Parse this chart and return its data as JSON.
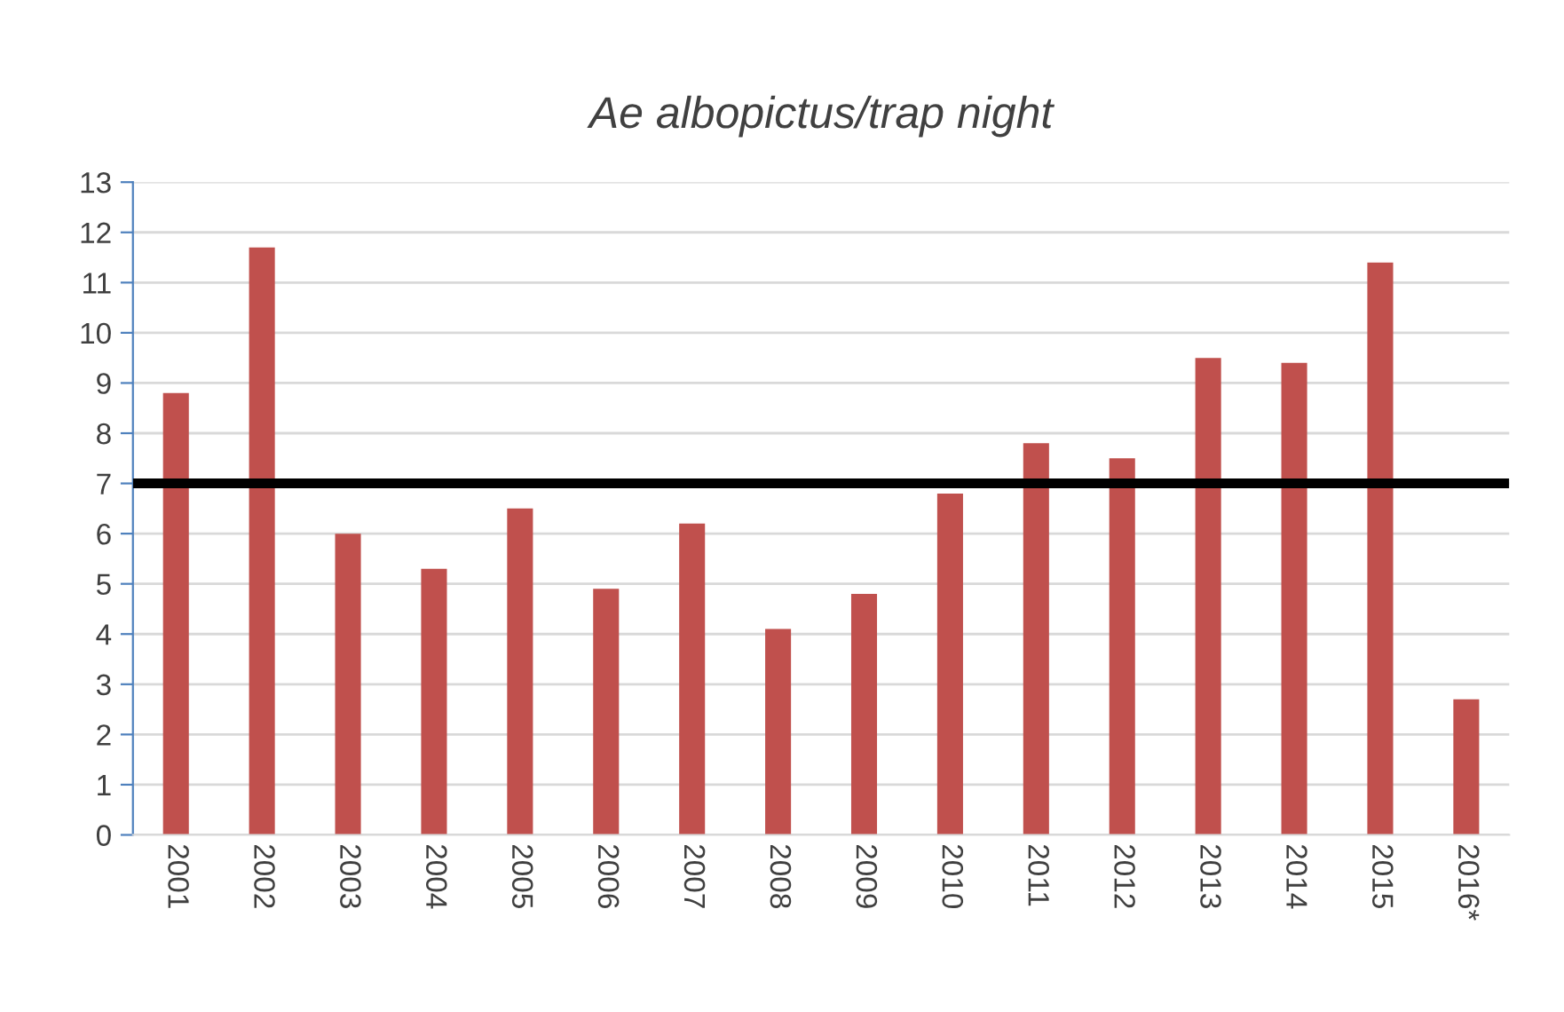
{
  "chart_data": {
    "type": "bar",
    "title": "Ae albopictus/trap night",
    "categories": [
      "2001",
      "2002",
      "2003",
      "2004",
      "2005",
      "2006",
      "2007",
      "2008",
      "2009",
      "2010",
      "2011",
      "2012",
      "2013",
      "2014",
      "2015",
      "2016*"
    ],
    "values": [
      8.8,
      11.7,
      6.0,
      5.3,
      6.5,
      4.9,
      6.2,
      4.1,
      4.8,
      6.8,
      7.8,
      7.5,
      9.5,
      9.4,
      11.4,
      2.7
    ],
    "color": "#c0504d",
    "ylim": [
      0,
      13
    ],
    "yticks": [
      0,
      1,
      2,
      3,
      4,
      5,
      6,
      7,
      8,
      9,
      10,
      11,
      12,
      13
    ],
    "grid": "y",
    "ref_lines": [
      {
        "axis": "y",
        "value": 7,
        "color": "#000000",
        "line_style": "solid"
      }
    ]
  }
}
